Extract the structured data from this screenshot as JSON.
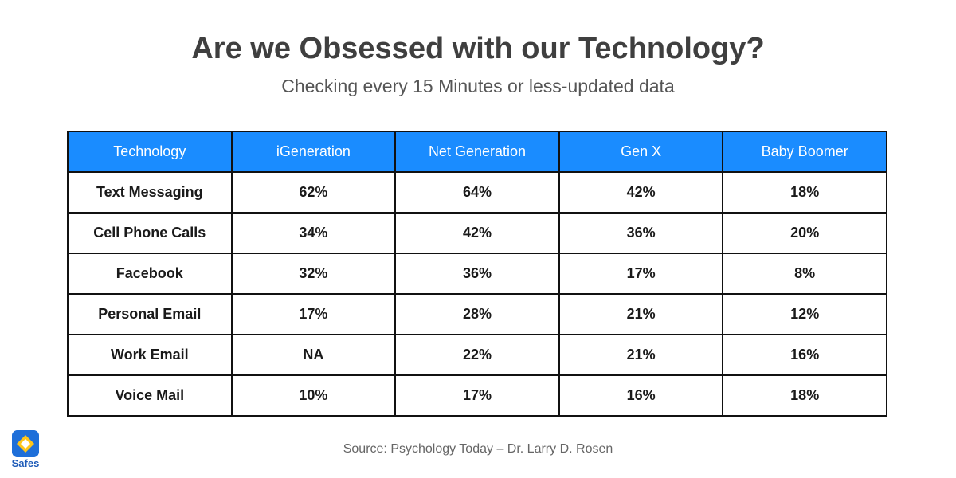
{
  "header": {
    "title": "Are we Obsessed with our Technology?",
    "subtitle": "Checking every 15 Minutes or less-updated data"
  },
  "table": {
    "columns": [
      "Technology",
      "iGeneration",
      "Net Generation",
      "Gen X",
      "Baby Boomer"
    ],
    "rows": [
      [
        "Text Messaging",
        "62%",
        "64%",
        "42%",
        "18%"
      ],
      [
        "Cell Phone Calls",
        "34%",
        "42%",
        "36%",
        "20%"
      ],
      [
        "Facebook",
        "32%",
        "36%",
        "17%",
        "8%"
      ],
      [
        "Personal Email",
        "17%",
        "28%",
        "21%",
        "12%"
      ],
      [
        "Work Email",
        "NA",
        "22%",
        "21%",
        "16%"
      ],
      [
        "Voice Mail",
        "10%",
        "17%",
        "16%",
        "18%"
      ]
    ]
  },
  "source": "Source: Psychology Today – Dr. Larry D. Rosen",
  "logo": "Safes"
}
